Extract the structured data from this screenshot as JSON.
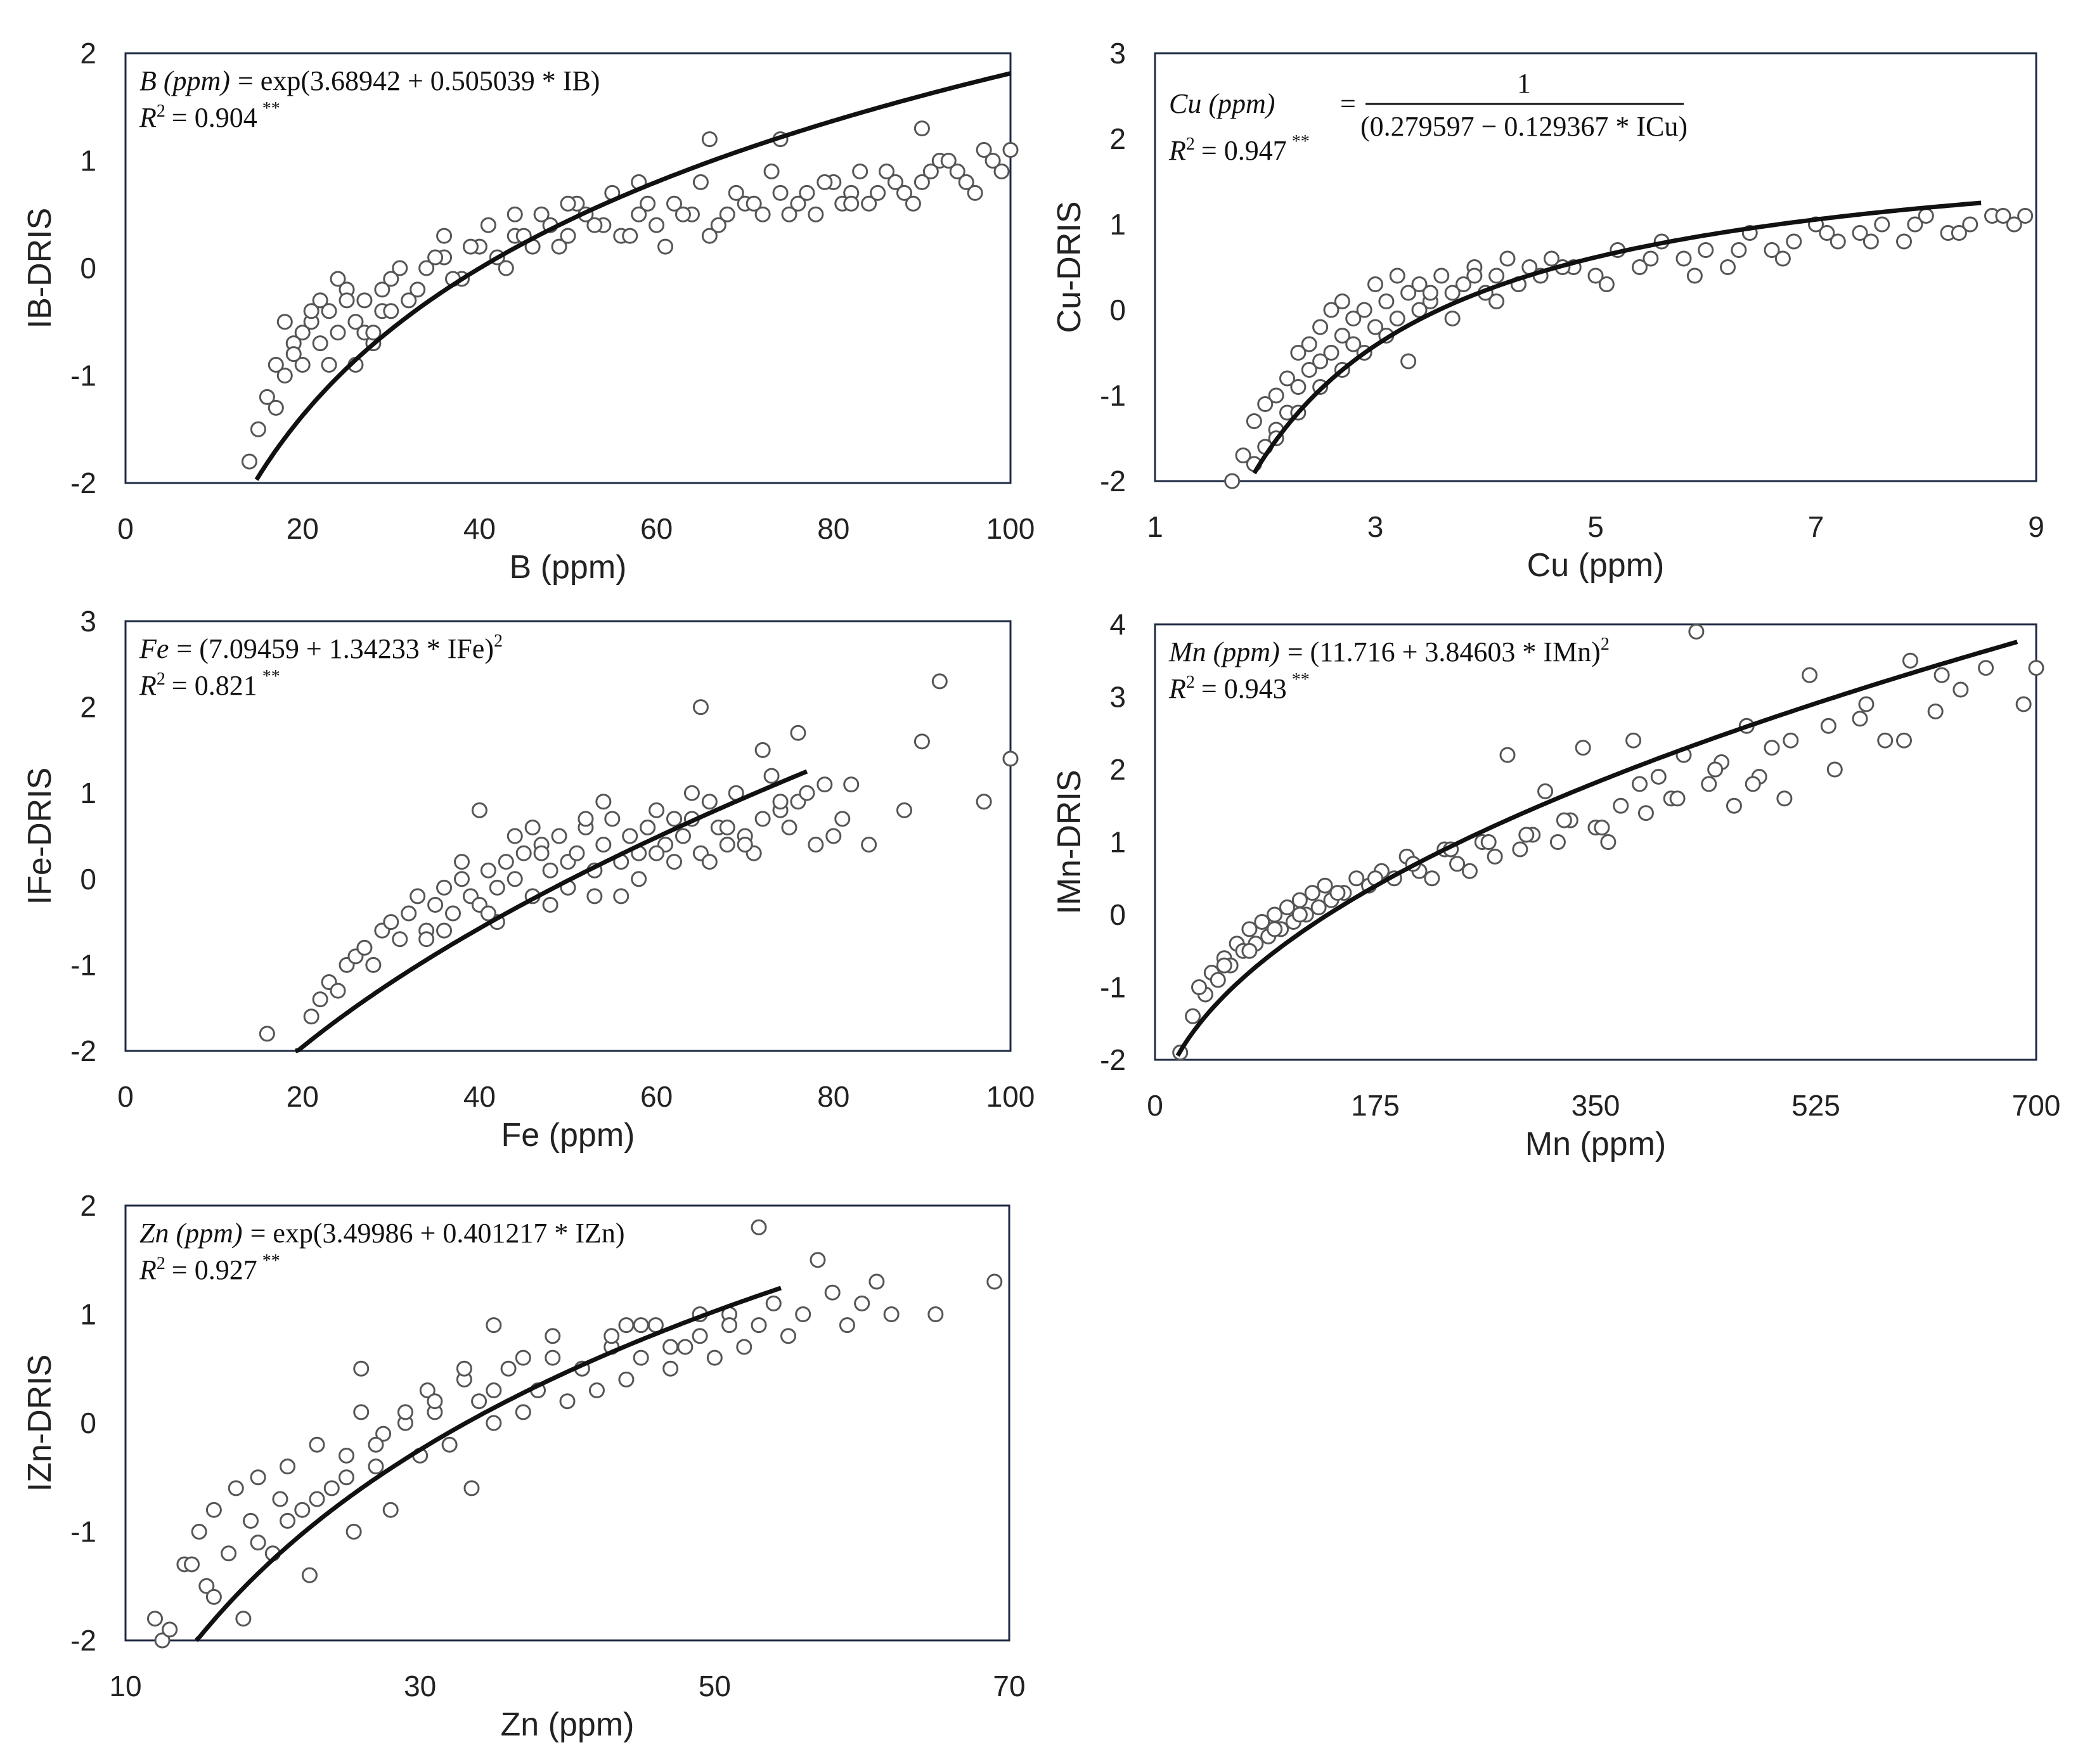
{
  "chart_data": [
    {
      "id": "B",
      "type": "scatter",
      "xlabel": "B (ppm)",
      "ylabel": "IB-DRIS",
      "xlim": [
        0,
        100
      ],
      "ylim": [
        -2,
        2
      ],
      "xticks": [
        0,
        20,
        40,
        60,
        80,
        100
      ],
      "yticks": [
        -2,
        -1,
        0,
        1,
        2
      ],
      "equation": {
        "lhs": "B (ppm)",
        "rhs": "= exp(3.68942 + 0.505039 * IB)",
        "r2_label": "R",
        "r2_value": "= 0.904",
        "sig": "**"
      },
      "fit": {
        "form": "exp",
        "a": 3.68942,
        "b": 0.505039,
        "x_range": [
          14.8,
          100
        ]
      },
      "points_x": [
        14,
        15,
        16,
        17,
        18,
        19,
        20,
        21,
        22,
        23,
        24,
        25,
        26,
        27,
        28,
        29,
        30,
        32,
        34,
        36,
        38,
        40,
        42,
        44,
        46,
        48,
        50,
        52,
        54,
        56,
        58,
        60,
        62,
        64,
        66,
        68,
        70,
        72,
        74,
        76,
        78,
        80,
        82,
        84,
        86,
        88,
        90,
        92,
        94,
        96,
        98,
        100,
        17,
        19,
        21,
        23,
        25,
        27,
        29,
        31,
        33,
        35,
        37,
        39,
        41,
        43,
        45,
        47,
        49,
        51,
        53,
        55,
        57,
        59,
        61,
        63,
        65,
        67,
        69,
        71,
        73,
        75,
        77,
        79,
        81,
        83,
        85,
        87,
        89,
        91,
        93,
        95,
        97,
        99,
        18,
        20,
        22,
        24,
        26,
        28,
        30,
        36,
        44,
        50,
        58,
        66,
        74,
        82,
        90
      ],
      "points_y": [
        -1.8,
        -1.5,
        -1.2,
        -0.9,
        -1.0,
        -0.7,
        -0.6,
        -0.5,
        -0.3,
        -0.4,
        -0.6,
        -0.2,
        -0.5,
        -0.3,
        -0.7,
        -0.2,
        -0.1,
        -0.3,
        0.0,
        0.1,
        -0.1,
        0.2,
        0.1,
        0.3,
        0.2,
        0.4,
        0.3,
        0.5,
        0.4,
        0.3,
        0.5,
        0.4,
        0.6,
        0.5,
        0.3,
        0.5,
        0.6,
        0.5,
        0.7,
        0.6,
        0.5,
        0.8,
        0.7,
        0.6,
        0.9,
        0.7,
        0.8,
        1.0,
        0.9,
        0.7,
        1.0,
        1.1,
        -1.3,
        -0.8,
        -0.4,
        -0.9,
        -0.3,
        -0.6,
        -0.4,
        0.0,
        -0.2,
        0.1,
        -0.1,
        0.2,
        0.4,
        0.0,
        0.3,
        0.5,
        0.2,
        0.6,
        0.4,
        0.7,
        0.3,
        0.6,
        0.2,
        0.5,
        0.8,
        0.4,
        0.7,
        0.6,
        0.9,
        0.5,
        0.7,
        0.8,
        0.6,
        0.9,
        0.7,
        0.8,
        0.6,
        0.9,
        1.0,
        0.8,
        1.1,
        0.9,
        -0.5,
        -0.9,
        -0.7,
        -0.1,
        -0.9,
        -0.6,
        -0.4,
        0.3,
        0.5,
        0.6,
        0.8,
        1.2,
        1.2,
        0.6,
        1.3
      ]
    },
    {
      "id": "Cu",
      "type": "scatter",
      "xlabel": "Cu (ppm)",
      "ylabel": "Cu-DRIS",
      "xlim": [
        1,
        9
      ],
      "ylim": [
        -2,
        3
      ],
      "xticks": [
        1,
        3,
        5,
        7,
        9
      ],
      "yticks": [
        -2,
        -1,
        0,
        1,
        2,
        3
      ],
      "equation": {
        "lhs": "Cu (ppm)",
        "rhs_num": "1",
        "rhs_den": "(0.279597 − 0.129367 * ICu)",
        "r2_label": "R",
        "r2_value": "= 0.947",
        "sig": "**"
      },
      "fit": {
        "form": "recip",
        "a": 0.279597,
        "b": 0.129367,
        "x_range": [
          1.9,
          8.5
        ]
      },
      "points_x": [
        1.7,
        1.8,
        1.9,
        2.0,
        2.0,
        2.1,
        2.1,
        2.2,
        2.2,
        2.3,
        2.3,
        2.4,
        2.4,
        2.5,
        2.5,
        2.6,
        2.6,
        2.7,
        2.7,
        2.8,
        2.8,
        2.9,
        3.0,
        3.0,
        3.1,
        3.2,
        3.2,
        3.3,
        3.4,
        3.4,
        3.5,
        3.6,
        3.7,
        3.8,
        3.9,
        4.0,
        4.1,
        4.2,
        4.3,
        4.4,
        4.5,
        4.6,
        4.8,
        5.0,
        5.2,
        5.4,
        5.6,
        5.8,
        6.0,
        6.2,
        6.4,
        6.6,
        6.8,
        7.0,
        7.2,
        7.4,
        7.6,
        7.8,
        8.0,
        8.2,
        8.4,
        8.6,
        8.8,
        8.9,
        1.9,
        2.1,
        2.3,
        2.5,
        2.7,
        2.9,
        3.1,
        3.3,
        3.5,
        3.7,
        3.9,
        4.1,
        4.3,
        4.7,
        5.1,
        5.5,
        5.9,
        6.3,
        6.7,
        7.1,
        7.5,
        7.9,
        8.3,
        8.7
      ],
      "points_y": [
        -2.0,
        -1.7,
        -1.3,
        -1.6,
        -1.1,
        -1.4,
        -1.0,
        -1.2,
        -0.8,
        -0.9,
        -0.5,
        -0.7,
        -0.4,
        -0.6,
        -0.2,
        -0.5,
        0.0,
        -0.3,
        0.1,
        -0.4,
        -0.1,
        0.0,
        -0.2,
        0.3,
        0.1,
        -0.1,
        0.4,
        0.2,
        0.0,
        0.3,
        0.1,
        0.4,
        0.2,
        0.3,
        0.5,
        0.2,
        0.4,
        0.6,
        0.3,
        0.5,
        0.4,
        0.6,
        0.5,
        0.4,
        0.7,
        0.5,
        0.8,
        0.6,
        0.7,
        0.5,
        0.9,
        0.7,
        0.8,
        1.0,
        0.8,
        0.9,
        1.0,
        0.8,
        1.1,
        0.9,
        1.0,
        1.1,
        1.0,
        1.1,
        -1.8,
        -1.5,
        -1.2,
        -0.9,
        -0.7,
        -0.5,
        -0.3,
        -0.6,
        0.2,
        -0.1,
        0.4,
        0.1,
        0.3,
        0.5,
        0.3,
        0.6,
        0.4,
        0.7,
        0.6,
        0.9,
        0.8,
        1.0,
        0.9,
        1.1
      ]
    },
    {
      "id": "Fe",
      "type": "scatter",
      "xlabel": "Fe (ppm)",
      "ylabel": "IFe-DRIS",
      "xlim": [
        0,
        100
      ],
      "ylim": [
        -2,
        3
      ],
      "xticks": [
        0,
        20,
        40,
        60,
        80,
        100
      ],
      "yticks": [
        -2,
        -1,
        0,
        1,
        2,
        3
      ],
      "equation": {
        "lhs": "Fe",
        "rhs": "= (7.09459 + 1.34233 * IFe)",
        "pow": "2",
        "r2_label": "R",
        "r2_value": "= 0.821",
        "sig": "**"
      },
      "fit": {
        "form": "sq",
        "a": 7.09459,
        "b": 1.34233,
        "x_range": [
          19.2,
          77
        ]
      },
      "points_x": [
        16,
        21,
        22,
        23,
        24,
        25,
        26,
        27,
        28,
        29,
        30,
        31,
        32,
        33,
        34,
        35,
        36,
        37,
        38,
        39,
        40,
        41,
        42,
        43,
        44,
        45,
        46,
        47,
        48,
        49,
        50,
        51,
        52,
        53,
        54,
        55,
        56,
        57,
        58,
        59,
        60,
        61,
        62,
        63,
        64,
        65,
        66,
        67,
        68,
        69,
        70,
        71,
        72,
        73,
        74,
        75,
        76,
        77,
        78,
        79,
        80,
        81,
        82,
        84,
        88,
        90,
        92,
        97,
        100,
        34,
        38,
        42,
        46,
        50,
        54,
        58,
        62,
        66,
        70,
        74,
        40,
        44,
        48,
        52,
        56,
        60,
        64,
        68,
        72,
        76,
        36,
        41,
        47,
        53,
        59,
        65
      ],
      "points_y": [
        -1.8,
        -1.6,
        -1.4,
        -1.2,
        -1.3,
        -1.0,
        -0.9,
        -0.8,
        -1.0,
        -0.6,
        -0.5,
        -0.7,
        -0.4,
        -0.2,
        -0.6,
        -0.3,
        -0.1,
        -0.4,
        0.0,
        -0.2,
        -0.3,
        0.1,
        -0.1,
        0.2,
        0.0,
        0.3,
        -0.2,
        0.4,
        0.1,
        0.5,
        0.2,
        0.3,
        0.6,
        0.1,
        0.4,
        0.7,
        0.2,
        0.5,
        0.3,
        0.6,
        0.8,
        0.4,
        0.2,
        0.5,
        0.7,
        0.3,
        0.9,
        0.6,
        0.4,
        1.0,
        0.5,
        0.3,
        0.7,
        1.2,
        0.8,
        0.6,
        0.9,
        1.0,
        0.4,
        1.1,
        0.5,
        0.7,
        1.1,
        0.4,
        0.8,
        1.6,
        2.3,
        0.9,
        1.4,
        -0.7,
        0.2,
        -0.5,
        0.6,
        -0.1,
        0.9,
        0.0,
        0.7,
        0.2,
        0.4,
        0.9,
        0.8,
        0.5,
        -0.3,
        0.7,
        -0.2,
        0.3,
        1.0,
        0.6,
        1.5,
        1.7,
        -0.6,
        -0.4,
        0.3,
        -0.2,
        0.6,
        2.0
      ]
    },
    {
      "id": "Mn",
      "type": "scatter",
      "xlabel": "Mn (ppm)",
      "ylabel": "IMn-DRIS",
      "xlim": [
        0,
        700
      ],
      "ylim": [
        -2,
        4
      ],
      "xticks": [
        0,
        175,
        350,
        525,
        700
      ],
      "yticks": [
        -2,
        -1,
        0,
        1,
        2,
        3,
        4
      ],
      "equation": {
        "lhs": "Mn (ppm)",
        "rhs": "= (11.716 + 3.84603 * IMn)",
        "pow": "2",
        "r2_label": "R",
        "r2_value": "= 0.943",
        "sig": "**"
      },
      "fit": {
        "form": "sq",
        "a": 11.716,
        "b": 3.84603,
        "x_range": [
          18,
          685
        ]
      },
      "points_x": [
        20,
        30,
        40,
        45,
        50,
        55,
        60,
        65,
        70,
        75,
        80,
        85,
        90,
        95,
        100,
        105,
        110,
        115,
        120,
        125,
        130,
        135,
        140,
        150,
        160,
        170,
        180,
        190,
        200,
        210,
        220,
        230,
        240,
        250,
        260,
        270,
        280,
        290,
        300,
        310,
        320,
        330,
        340,
        350,
        360,
        370,
        380,
        390,
        400,
        410,
        420,
        430,
        440,
        450,
        460,
        470,
        480,
        490,
        500,
        520,
        540,
        560,
        580,
        600,
        620,
        640,
        660,
        690,
        700,
        35,
        55,
        75,
        95,
        115,
        145,
        175,
        205,
        235,
        265,
        295,
        325,
        355,
        385,
        415,
        445,
        475,
        505,
        535,
        565,
        595,
        625
      ],
      "points_y": [
        -1.9,
        -1.4,
        -1.1,
        -0.8,
        -0.9,
        -0.6,
        -0.7,
        -0.4,
        -0.5,
        -0.2,
        -0.4,
        -0.1,
        -0.3,
        0.0,
        -0.2,
        0.1,
        -0.1,
        0.2,
        0.0,
        0.3,
        0.1,
        0.4,
        0.2,
        0.3,
        0.5,
        0.4,
        0.6,
        0.5,
        0.8,
        0.6,
        0.5,
        0.9,
        0.7,
        0.6,
        1.0,
        0.8,
        2.2,
        0.9,
        1.1,
        1.7,
        1.0,
        1.3,
        2.3,
        1.2,
        1.0,
        1.5,
        2.4,
        1.4,
        1.9,
        1.6,
        2.2,
        3.9,
        1.8,
        2.1,
        1.5,
        2.6,
        1.9,
        2.3,
        1.6,
        3.3,
        2.0,
        2.7,
        2.4,
        3.5,
        2.8,
        3.1,
        3.4,
        2.9,
        3.4,
        -1.0,
        -0.7,
        -0.5,
        -0.2,
        0.0,
        0.3,
        0.5,
        0.7,
        0.9,
        1.0,
        1.1,
        1.3,
        1.2,
        1.8,
        1.6,
        2.0,
        1.8,
        2.4,
        2.6,
        2.9,
        2.4,
        3.3
      ]
    },
    {
      "id": "Zn",
      "type": "scatter",
      "xlabel": "Zn (ppm)",
      "ylabel": "IZn-DRIS",
      "xlim": [
        10,
        70
      ],
      "ylim": [
        -2,
        2
      ],
      "xticks": [
        10,
        30,
        50,
        70
      ],
      "yticks": [
        -2,
        -1,
        0,
        1,
        2
      ],
      "equation": {
        "lhs": "Zn (ppm)",
        "rhs": "= exp(3.49986 + 0.401217 * IZn)",
        "r2_label": "R",
        "r2_value": "= 0.927",
        "sig": "**"
      },
      "fit": {
        "form": "exp",
        "a": 3.49986,
        "b": 0.401217,
        "x_range": [
          14.8,
          54.5
        ]
      },
      "points_x": [
        12,
        12.5,
        13,
        14,
        15,
        15.5,
        16,
        17,
        17.5,
        18,
        18.5,
        19,
        20,
        20.5,
        21,
        22,
        22.5,
        23,
        24,
        25,
        25.5,
        26,
        27,
        27.5,
        28,
        29,
        30,
        30.5,
        31,
        32,
        33,
        33.5,
        34,
        35,
        36,
        37,
        38,
        39,
        40,
        41,
        42,
        43,
        44,
        45,
        46,
        47,
        48,
        49,
        50,
        51,
        52,
        53,
        54,
        55,
        56,
        57,
        58,
        59,
        60,
        61,
        62,
        65,
        69,
        16,
        19,
        21,
        23,
        25,
        27,
        29,
        31,
        33,
        35,
        37,
        39,
        41,
        43,
        45,
        47,
        49,
        51,
        53,
        26,
        35,
        44,
        14.5
      ],
      "points_y": [
        -1.8,
        -2.0,
        -1.9,
        -1.3,
        -1.0,
        -1.5,
        -0.8,
        -1.2,
        -0.6,
        -1.8,
        -0.9,
        -0.5,
        -1.2,
        -0.7,
        -0.4,
        -0.8,
        -1.4,
        -0.2,
        -0.6,
        -0.3,
        -1.0,
        0.1,
        -0.4,
        -0.1,
        -0.8,
        0.0,
        -0.3,
        0.3,
        0.1,
        -0.2,
        0.4,
        -0.6,
        0.2,
        0.0,
        0.5,
        0.1,
        0.3,
        0.6,
        0.2,
        0.5,
        0.3,
        0.7,
        0.4,
        0.6,
        0.9,
        0.5,
        0.7,
        0.8,
        0.6,
        1.0,
        0.7,
        0.9,
        1.1,
        0.8,
        1.0,
        1.5,
        1.2,
        0.9,
        1.1,
        1.3,
        1.0,
        1.0,
        1.3,
        -1.6,
        -1.1,
        -0.9,
        -0.7,
        -0.5,
        -0.2,
        0.1,
        0.2,
        0.5,
        0.3,
        0.6,
        0.8,
        0.5,
        0.8,
        0.9,
        0.7,
        1.0,
        0.9,
        1.8,
        0.5,
        0.9,
        0.9,
        -1.3
      ]
    }
  ]
}
